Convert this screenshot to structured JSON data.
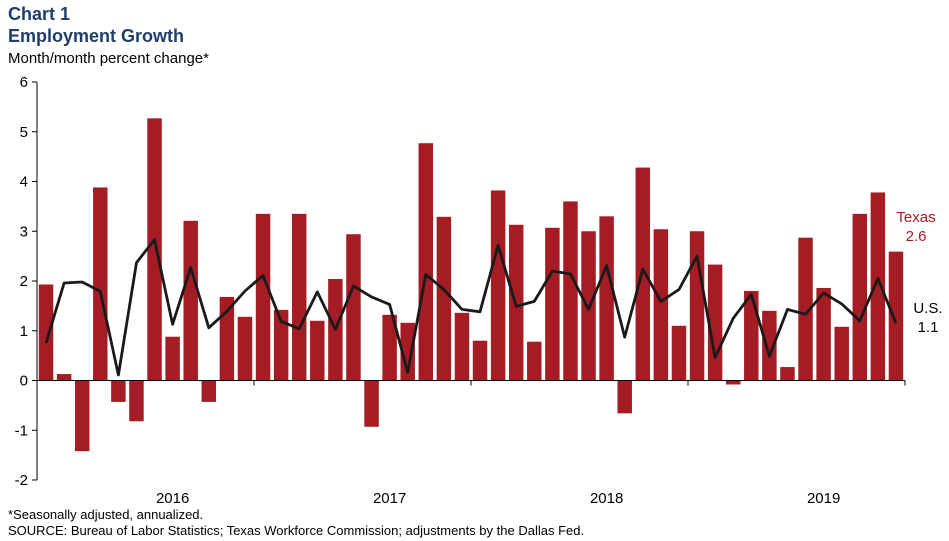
{
  "header": {
    "chart_number": "Chart 1",
    "title": "Employment Growth",
    "subtitle": "Month/month  percent change*"
  },
  "footer": {
    "note": "*Seasonally adjusted, annualized.",
    "source": "SOURCE: Bureau of Labor Statistics; Texas Workforce Commission; adjustments by the Dallas Fed."
  },
  "chart_data": {
    "type": "bar",
    "title": "Employment Growth",
    "ylabel": "Month/month  percent change*",
    "ylim": [
      -2,
      6
    ],
    "yticks": [
      6,
      5,
      4,
      3,
      2,
      1,
      0,
      -1,
      -2
    ],
    "x_labels": [
      {
        "label": "2016",
        "index": 7
      },
      {
        "label": "2017",
        "index": 19
      },
      {
        "label": "2018",
        "index": 31
      },
      {
        "label": "2019",
        "index": 43
      }
    ],
    "series": [
      {
        "name": "Texas",
        "type": "bar",
        "color": "#a51c24",
        "end_label": "Texas",
        "end_value": "2.6",
        "values": [
          1.93,
          0.13,
          -1.42,
          3.88,
          -0.43,
          -0.82,
          5.27,
          0.88,
          3.21,
          -0.43,
          1.68,
          1.28,
          3.35,
          1.42,
          3.35,
          1.2,
          2.04,
          2.94,
          -0.93,
          1.32,
          1.16,
          4.77,
          3.29,
          1.36,
          0.8,
          3.82,
          3.13,
          0.78,
          3.07,
          3.6,
          3.0,
          3.3,
          -0.66,
          4.28,
          3.04,
          1.1,
          3.0,
          2.33,
          -0.08,
          1.8,
          1.4,
          0.27,
          2.87,
          1.86,
          1.08,
          3.35,
          3.78,
          2.59
        ]
      },
      {
        "name": "U.S.",
        "type": "line",
        "color": "#1a1a1a",
        "end_label": "U.S.",
        "end_value": "1.1",
        "values": [
          0.75,
          1.96,
          1.98,
          1.79,
          0.11,
          2.37,
          2.83,
          1.13,
          2.27,
          1.06,
          1.39,
          1.8,
          2.11,
          1.19,
          1.04,
          1.78,
          1.03,
          1.9,
          1.68,
          1.53,
          0.16,
          2.13,
          1.83,
          1.43,
          1.38,
          2.72,
          1.49,
          1.59,
          2.2,
          2.14,
          1.43,
          2.31,
          0.87,
          2.24,
          1.59,
          1.83,
          2.5,
          0.46,
          1.25,
          1.73,
          0.49,
          1.43,
          1.33,
          1.76,
          1.54,
          1.2,
          2.05,
          1.15
        ]
      }
    ]
  }
}
